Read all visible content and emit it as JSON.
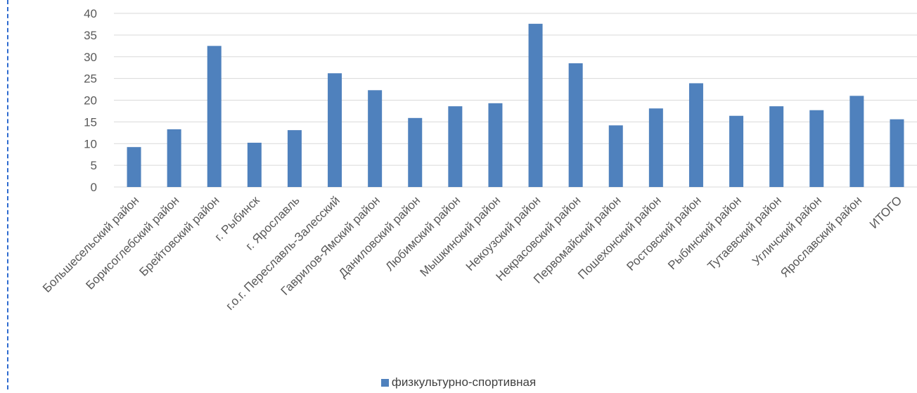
{
  "chart_data": {
    "type": "bar",
    "categories": [
      "Большесельский район",
      "Борисоглебский район",
      "Брейтовский район",
      "г. Рыбинск",
      "г. Ярославль",
      "г.о.г. Переславль-Залесский",
      "Гаврилов-Ямский район",
      "Даниловский район",
      "Любимский район",
      "Мышкинский район",
      "Некоузский район",
      "Некрасовский район",
      "Первомайский район",
      "Пошехонский район",
      "Ростовский район",
      "Рыбинский район",
      "Тутаевский район",
      "Угличский район",
      "Ярославский район",
      "ИТОГО"
    ],
    "series": [
      {
        "name": "физкультурно-спортивная",
        "color": "#4f81bd",
        "values": [
          9.2,
          13.3,
          32.5,
          10.2,
          13.1,
          26.2,
          22.3,
          15.9,
          18.6,
          19.3,
          37.6,
          28.5,
          14.2,
          18.1,
          23.9,
          16.4,
          18.6,
          17.7,
          21.0,
          15.6
        ]
      }
    ],
    "ylim": [
      0,
      40
    ],
    "yticks": [
      0,
      5,
      10,
      15,
      20,
      25,
      30,
      35,
      40
    ],
    "grid": true,
    "legend_position": "bottom",
    "title": "",
    "xlabel": "",
    "ylabel": ""
  }
}
